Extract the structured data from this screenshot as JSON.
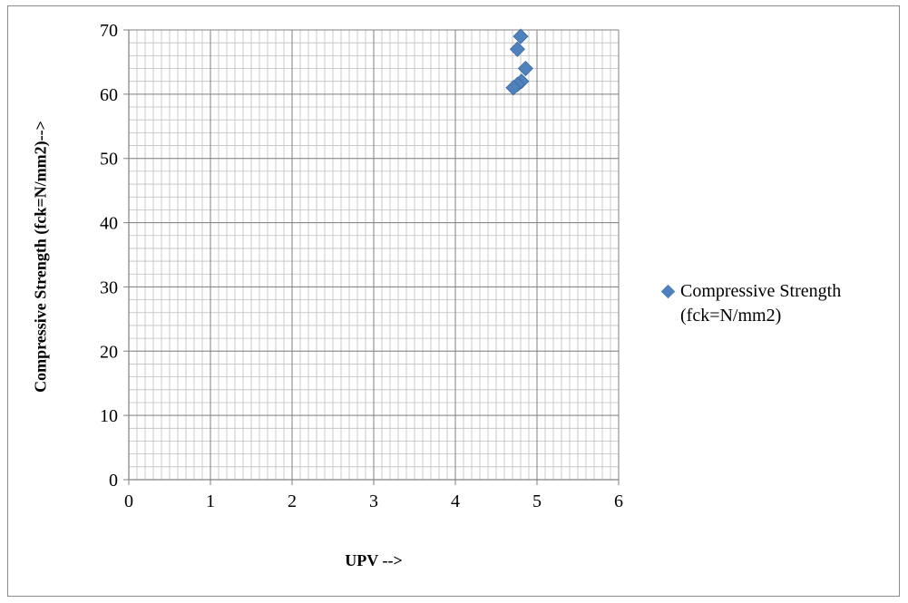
{
  "chart_data": {
    "type": "scatter",
    "title": "",
    "xlabel": "UPV -->",
    "ylabel": "Compressive Strength (fck=N/mm2)-->",
    "xlim": [
      0,
      6
    ],
    "ylim": [
      0,
      70
    ],
    "x_ticks": [
      "0",
      "1",
      "2",
      "3",
      "4",
      "5",
      "6"
    ],
    "y_ticks": [
      "0",
      "10",
      "20",
      "30",
      "40",
      "50",
      "60",
      "70"
    ],
    "grid": true,
    "legend_position": "right",
    "series": [
      {
        "name": "Compressive Strength (fck=N/mm2)",
        "color": "#4f81bd",
        "marker": "diamond",
        "points": [
          {
            "x": 4.8,
            "y": 69.0
          },
          {
            "x": 4.76,
            "y": 67.0
          },
          {
            "x": 4.86,
            "y": 64.0
          },
          {
            "x": 4.81,
            "y": 62.0
          },
          {
            "x": 4.76,
            "y": 61.5
          },
          {
            "x": 4.71,
            "y": 61.0
          }
        ]
      }
    ]
  },
  "legend": {
    "line1": "Compressive Strength",
    "line2": "(fck=N/mm2)"
  }
}
